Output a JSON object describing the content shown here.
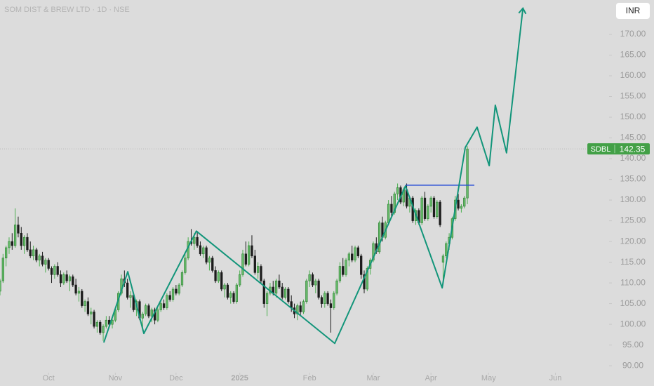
{
  "chart_data": {
    "type": "candlestick",
    "title": "SOM DIST & BREW LTD · 1D · NSE",
    "currency": "INR",
    "symbol": "SDBL",
    "last_price": 142.35,
    "up_color": "#4caf50",
    "down_color": "#1c1c1c",
    "xlim": [
      0,
      200
    ],
    "ylim": [
      88.5,
      178.3
    ],
    "xticks": [
      {
        "value": 16,
        "label": "Oct"
      },
      {
        "value": 38,
        "label": "Nov"
      },
      {
        "value": 58,
        "label": "Dec"
      },
      {
        "value": 79,
        "label": "2025"
      },
      {
        "value": 102,
        "label": "Feb"
      },
      {
        "value": 123,
        "label": "Mar"
      },
      {
        "value": 142,
        "label": "Apr"
      },
      {
        "value": 161,
        "label": "May"
      },
      {
        "value": 183,
        "label": "Jun"
      }
    ],
    "yticks": [
      {
        "value": 90,
        "label": "90.00"
      },
      {
        "value": 95,
        "label": "95.00"
      },
      {
        "value": 100,
        "label": "100.00"
      },
      {
        "value": 105,
        "label": "105.00"
      },
      {
        "value": 110,
        "label": "110.00"
      },
      {
        "value": 115,
        "label": "115.00"
      },
      {
        "value": 120,
        "label": "120.00"
      },
      {
        "value": 125,
        "label": "125.00"
      },
      {
        "value": 130,
        "label": "130.00"
      },
      {
        "value": 135,
        "label": "135.00"
      },
      {
        "value": 140,
        "label": "140.00"
      },
      {
        "value": 145,
        "label": "145.00"
      },
      {
        "value": 150,
        "label": "150.00"
      },
      {
        "value": 155,
        "label": "155.00"
      },
      {
        "value": 160,
        "label": "160.00"
      },
      {
        "value": 165,
        "label": "165.00"
      },
      {
        "value": 170,
        "label": "170.00"
      }
    ],
    "x": [
      0,
      1,
      2,
      3,
      4,
      5,
      6,
      7,
      8,
      9,
      10,
      11,
      12,
      13,
      14,
      15,
      16,
      17,
      18,
      19,
      20,
      21,
      22,
      23,
      24,
      25,
      26,
      27,
      28,
      29,
      30,
      31,
      32,
      33,
      34,
      35,
      36,
      37,
      38,
      39,
      40,
      41,
      42,
      43,
      44,
      45,
      46,
      47,
      48,
      49,
      50,
      51,
      52,
      53,
      54,
      55,
      56,
      57,
      58,
      59,
      60,
      61,
      62,
      63,
      64,
      65,
      66,
      67,
      68,
      69,
      70,
      71,
      72,
      73,
      74,
      75,
      76,
      77,
      78,
      79,
      80,
      81,
      82,
      83,
      84,
      85,
      86,
      87,
      88,
      89,
      90,
      91,
      92,
      93,
      94,
      95,
      96,
      97,
      98,
      99,
      100,
      101,
      102,
      103,
      104,
      105,
      106,
      107,
      108,
      109,
      110,
      111,
      112,
      113,
      114,
      115,
      116,
      117,
      118,
      119,
      120,
      121,
      122,
      123,
      124,
      125,
      126,
      127,
      128,
      129,
      130,
      131,
      132,
      133,
      134,
      135,
      136,
      137,
      138,
      139,
      140,
      141,
      142,
      143,
      144,
      145,
      146,
      147,
      148,
      149,
      150,
      151,
      152,
      153,
      154
    ],
    "ohlc": [
      [
        108,
        111,
        107,
        110.5
      ],
      [
        110.5,
        117,
        110,
        116
      ],
      [
        116,
        119,
        114,
        118.5
      ],
      [
        118.5,
        121,
        117,
        120
      ],
      [
        120,
        122,
        118,
        119
      ],
      [
        119,
        128,
        118.5,
        124
      ],
      [
        124,
        126,
        121,
        122
      ],
      [
        122,
        123.5,
        118,
        119
      ],
      [
        119,
        121.5,
        117,
        121
      ],
      [
        121,
        122,
        117.5,
        118
      ],
      [
        118,
        120,
        116,
        116.5
      ],
      [
        116.5,
        119,
        115.5,
        118
      ],
      [
        118,
        118.5,
        115,
        115.5
      ],
      [
        115.5,
        117,
        114,
        116.5
      ],
      [
        116.5,
        117.5,
        114,
        114.5
      ],
      [
        114.5,
        116,
        112.5,
        115.5
      ],
      [
        115.5,
        116,
        113,
        113.5
      ],
      [
        113.5,
        114,
        110,
        112
      ],
      [
        112,
        114.5,
        111,
        114
      ],
      [
        114,
        115,
        111.5,
        112
      ],
      [
        112,
        113,
        109,
        110
      ],
      [
        110,
        112.5,
        109.5,
        112
      ],
      [
        112,
        113,
        110,
        110.5
      ],
      [
        110.5,
        112,
        108,
        111.5
      ],
      [
        111.5,
        112,
        109,
        109.5
      ],
      [
        109.5,
        111,
        107,
        107.5
      ],
      [
        107.5,
        109,
        105.5,
        108
      ],
      [
        108,
        108.5,
        104,
        104.5
      ],
      [
        104.5,
        106,
        103,
        105.5
      ],
      [
        105.5,
        106.5,
        102,
        102.5
      ],
      [
        102.5,
        104,
        100,
        103
      ],
      [
        103,
        103.5,
        99,
        99.5
      ],
      [
        99.5,
        101,
        98,
        100.5
      ],
      [
        100.5,
        101,
        97.5,
        98
      ],
      [
        98,
        100,
        96,
        99.5
      ],
      [
        99.5,
        102,
        99,
        101
      ],
      [
        101,
        102,
        99.5,
        100
      ],
      [
        100,
        101.5,
        99,
        101
      ],
      [
        101,
        104,
        100.5,
        103.5
      ],
      [
        103.5,
        108,
        103,
        107.5
      ],
      [
        107.5,
        112,
        107,
        111
      ],
      [
        111,
        113,
        109,
        110
      ],
      [
        110,
        111,
        106,
        106.5
      ],
      [
        106.5,
        108,
        104,
        107
      ],
      [
        107,
        107.5,
        103,
        103.5
      ],
      [
        103.5,
        106,
        102,
        105.5
      ],
      [
        105.5,
        106,
        101,
        101.5
      ],
      [
        101.5,
        103,
        98.5,
        102.5
      ],
      [
        102.5,
        105,
        102,
        104.5
      ],
      [
        104.5,
        105,
        101.5,
        102
      ],
      [
        102,
        104,
        100.5,
        103.5
      ],
      [
        103.5,
        104,
        100,
        101
      ],
      [
        101,
        104,
        100.5,
        103.5
      ],
      [
        103.5,
        106,
        103,
        105
      ],
      [
        105,
        106,
        103.5,
        104
      ],
      [
        104,
        107.5,
        103.5,
        107
      ],
      [
        107,
        108,
        105.5,
        106
      ],
      [
        106,
        109,
        105.5,
        108.5
      ],
      [
        108.5,
        109.5,
        107,
        107.5
      ],
      [
        107.5,
        110,
        107,
        109.5
      ],
      [
        109.5,
        113,
        109,
        112.5
      ],
      [
        112.5,
        117,
        112,
        116
      ],
      [
        116,
        121,
        115.5,
        120
      ],
      [
        120,
        123,
        119,
        119.5
      ],
      [
        119.5,
        122,
        118,
        121
      ],
      [
        121,
        122.5,
        118.5,
        119
      ],
      [
        119,
        120,
        116.5,
        117
      ],
      [
        117,
        119,
        116,
        118.5
      ],
      [
        118.5,
        119,
        114.5,
        115
      ],
      [
        115,
        116.5,
        113,
        116
      ],
      [
        116,
        116.5,
        112.5,
        113
      ],
      [
        113,
        114,
        110,
        110.5
      ],
      [
        110.5,
        113,
        110,
        112.5
      ],
      [
        112.5,
        113,
        108,
        108.5
      ],
      [
        108.5,
        110,
        106.5,
        109.5
      ],
      [
        109.5,
        110,
        106,
        106.5
      ],
      [
        106.5,
        108,
        105,
        107.5
      ],
      [
        107.5,
        108,
        105,
        105.5
      ],
      [
        105.5,
        110,
        105,
        109.5
      ],
      [
        109.5,
        113,
        109,
        112
      ],
      [
        112,
        118,
        111.5,
        117
      ],
      [
        117,
        120,
        114,
        114.5
      ],
      [
        114.5,
        120,
        114,
        119
      ],
      [
        119,
        121.5,
        116,
        116.5
      ],
      [
        116.5,
        118,
        112,
        112.5
      ],
      [
        112.5,
        115,
        111,
        114
      ],
      [
        114,
        114.5,
        110,
        110.5
      ],
      [
        110.5,
        111,
        104,
        105
      ],
      [
        105,
        108,
        102,
        107.5
      ],
      [
        107.5,
        110,
        107,
        109
      ],
      [
        109,
        110.5,
        107,
        107.5
      ],
      [
        107.5,
        111,
        106.5,
        110.5
      ],
      [
        110.5,
        112,
        108.5,
        109
      ],
      [
        109,
        110,
        106,
        106.5
      ],
      [
        106.5,
        109,
        106,
        108.5
      ],
      [
        108.5,
        109,
        105,
        105.5
      ],
      [
        105.5,
        107,
        103,
        104
      ],
      [
        104,
        105,
        101.5,
        102.5
      ],
      [
        102.5,
        105,
        101,
        104.5
      ],
      [
        104.5,
        105.5,
        102,
        103
      ],
      [
        103,
        106,
        102.5,
        105.5
      ],
      [
        105.5,
        111,
        105,
        110.5
      ],
      [
        110.5,
        113,
        109,
        112
      ],
      [
        112,
        112.5,
        109,
        109.5
      ],
      [
        109.5,
        111,
        107.5,
        110.5
      ],
      [
        110.5,
        111,
        106,
        106.5
      ],
      [
        106.5,
        107,
        104,
        105
      ],
      [
        105,
        108,
        104,
        107.5
      ],
      [
        107.5,
        108,
        104.5,
        105
      ],
      [
        105,
        106,
        98,
        104
      ],
      [
        104,
        108,
        103.5,
        107.5
      ],
      [
        107.5,
        111,
        107,
        110.5
      ],
      [
        110.5,
        115,
        110,
        114
      ],
      [
        114,
        116,
        111.5,
        112
      ],
      [
        112,
        116,
        111.5,
        115.5
      ],
      [
        115.5,
        117.5,
        114,
        117
      ],
      [
        117,
        119,
        115,
        115.5
      ],
      [
        115.5,
        119,
        115,
        118.5
      ],
      [
        118.5,
        119,
        116,
        116.5
      ],
      [
        116.5,
        117,
        111,
        112
      ],
      [
        112,
        113,
        107.5,
        108.5
      ],
      [
        108.5,
        114,
        108,
        113.5
      ],
      [
        113.5,
        116,
        112,
        115.5
      ],
      [
        115.5,
        120,
        115,
        119.5
      ],
      [
        119.5,
        121,
        117,
        117.5
      ],
      [
        117.5,
        125,
        117,
        124.5
      ],
      [
        124.5,
        126,
        120,
        121
      ],
      [
        121,
        125,
        120.5,
        124.5
      ],
      [
        124.5,
        130,
        124,
        129
      ],
      [
        129,
        131,
        126,
        127
      ],
      [
        127,
        132,
        126.5,
        131.5
      ],
      [
        131.5,
        134,
        130,
        133
      ],
      [
        133,
        133.5,
        129,
        129.5
      ],
      [
        129.5,
        133,
        128.5,
        132.5
      ],
      [
        132.5,
        134,
        128,
        128.5
      ],
      [
        128.5,
        131,
        127,
        130.5
      ],
      [
        130.5,
        131,
        124.5,
        125
      ],
      [
        125,
        128,
        124,
        127.5
      ],
      [
        127.5,
        128,
        124,
        124.5
      ],
      [
        124.5,
        131,
        124,
        130.5
      ],
      [
        130.5,
        132,
        125,
        125.5
      ],
      [
        125.5,
        129,
        125,
        128.5
      ],
      [
        128.5,
        131,
        127,
        130.5
      ],
      [
        130.5,
        131,
        125.5,
        126
      ],
      [
        126,
        130,
        125.5,
        129.5
      ],
      [
        129.5,
        130,
        123.5,
        124
      ],
      [
        115,
        117,
        110,
        116.5
      ],
      [
        116.5,
        120,
        116,
        119.5
      ],
      [
        119.5,
        122,
        118,
        121
      ],
      [
        121,
        126,
        120.5,
        125.5
      ],
      [
        125.5,
        131,
        125,
        130
      ],
      [
        130,
        131.5,
        127.5,
        128
      ],
      [
        128,
        129,
        127,
        128.5
      ],
      [
        128.5,
        131,
        128,
        130.5
      ],
      [
        130.5,
        143,
        129,
        142.35
      ]
    ],
    "drawings": {
      "zigzag": {
        "color": "#12957a",
        "x": [
          34.2,
          42.1,
          47.4,
          64.7,
          110.3,
          133.6,
          145.7,
          153.3,
          157.2,
          161.2,
          163.2,
          166.9,
          172.3
        ],
        "y": [
          95.6,
          112.7,
          97.8,
          122.5,
          95.4,
          133.4,
          108.8,
          142.7,
          147.6,
          138.3,
          152.9,
          141.4,
          176.3
        ]
      },
      "level": {
        "color": "#2a4fd6",
        "x": [
          133.6,
          156.3
        ],
        "y": 133.6
      }
    }
  }
}
